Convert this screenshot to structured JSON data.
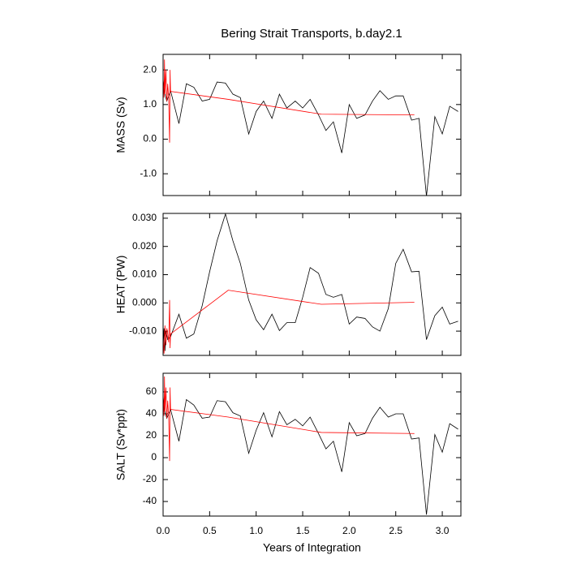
{
  "chart_data": [
    {
      "type": "line",
      "title": "Bering Strait Transports, b.day2.1",
      "ylabel": "MASS (Sv)",
      "xlim": [
        0,
        3.2
      ],
      "ylim": [
        -1.63,
        2.45
      ],
      "yticks": [
        {
          "value": 2,
          "label": "2.0"
        },
        {
          "value": 1,
          "label": "1.0"
        },
        {
          "value": 0,
          "label": "0.0"
        },
        {
          "value": -1,
          "label": "-1.0"
        }
      ],
      "series": [
        {
          "color": "#000000",
          "x": [
            0,
            0.02,
            0.04,
            0.08,
            0.17,
            0.25,
            0.33,
            0.42,
            0.5,
            0.58,
            0.67,
            0.75,
            0.83,
            0.92,
            1.0,
            1.08,
            1.17,
            1.25,
            1.33,
            1.42,
            1.5,
            1.58,
            1.67,
            1.75,
            1.83,
            1.92,
            2.0,
            2.08,
            2.17,
            2.25,
            2.33,
            2.42,
            2.5,
            2.58,
            2.67,
            2.75,
            2.83,
            2.92,
            3.0,
            3.08,
            3.17
          ],
          "values": [
            1.7,
            1.3,
            1.1,
            1.4,
            0.45,
            1.6,
            1.5,
            1.1,
            1.15,
            1.65,
            1.62,
            1.3,
            1.2,
            0.15,
            0.8,
            1.1,
            0.6,
            1.3,
            0.9,
            1.1,
            0.9,
            1.15,
            0.7,
            0.25,
            0.5,
            -0.4,
            1.0,
            0.6,
            0.7,
            1.1,
            1.4,
            1.15,
            1.25,
            1.25,
            0.55,
            0.6,
            -1.65,
            0.65,
            0.15,
            0.95,
            0.8
          ]
        },
        {
          "color": "#ff0000",
          "x": [
            0,
            0.01,
            0.015,
            0.02,
            0.03,
            0.04,
            0.05,
            0.06,
            0.07,
            0.075,
            0.08,
            0.7,
            1.7,
            2.7
          ],
          "values": [
            1.8,
            1.2,
            2.3,
            1.3,
            2.0,
            1.1,
            1.6,
            1.2,
            -0.1,
            2.0,
            1.38,
            1.15,
            0.72,
            0.7
          ]
        }
      ]
    },
    {
      "type": "line",
      "ylabel": "HEAT (PW)",
      "xlim": [
        0,
        3.2
      ],
      "ylim": [
        -0.0186,
        0.0317
      ],
      "yticks": [
        {
          "value": 0.03,
          "label": "0.030"
        },
        {
          "value": 0.02,
          "label": "0.020"
        },
        {
          "value": 0.01,
          "label": "0.010"
        },
        {
          "value": 0,
          "label": "0.000"
        },
        {
          "value": -0.01,
          "label": "-0.010"
        }
      ],
      "series": [
        {
          "color": "#000000",
          "x": [
            0,
            0.01,
            0.02,
            0.03,
            0.05,
            0.08,
            0.17,
            0.25,
            0.33,
            0.42,
            0.5,
            0.58,
            0.67,
            0.75,
            0.83,
            0.92,
            1.0,
            1.08,
            1.17,
            1.25,
            1.33,
            1.42,
            1.5,
            1.58,
            1.67,
            1.75,
            1.83,
            1.92,
            2.0,
            2.08,
            2.17,
            2.25,
            2.33,
            2.42,
            2.5,
            2.58,
            2.67,
            2.75,
            2.83,
            2.92,
            3.0,
            3.08,
            3.17
          ],
          "values": [
            -0.016,
            -0.009,
            -0.017,
            -0.01,
            -0.013,
            -0.012,
            -0.004,
            -0.0125,
            -0.011,
            -0.001,
            0.011,
            0.022,
            0.0315,
            0.022,
            0.014,
            0.001,
            -0.006,
            -0.0095,
            -0.004,
            -0.0098,
            -0.007,
            -0.007,
            0.002,
            0.0125,
            0.0105,
            0.003,
            0.002,
            0.003,
            -0.0075,
            -0.005,
            -0.0055,
            -0.0085,
            -0.01,
            -0.002,
            0.014,
            0.019,
            0.011,
            0.0112,
            -0.013,
            -0.0045,
            -0.0015,
            -0.0075,
            -0.0065
          ]
        },
        {
          "color": "#ff0000",
          "x": [
            0,
            0.01,
            0.02,
            0.03,
            0.04,
            0.05,
            0.06,
            0.07,
            0.075,
            0.08,
            0.7,
            1.7,
            2.7
          ],
          "values": [
            -0.012,
            -0.018,
            -0.008,
            -0.015,
            -0.009,
            -0.011,
            -0.014,
            0.001,
            -0.016,
            -0.011,
            0.0045,
            -0.0005,
            0.0002
          ]
        }
      ]
    },
    {
      "type": "line",
      "ylabel": "SALT (Sv*ppt)",
      "xlabel": "Years of Integration",
      "xlim": [
        0,
        3.2
      ],
      "ylim": [
        -53.3,
        77
      ],
      "xticks": [
        {
          "value": 0,
          "label": "0.0"
        },
        {
          "value": 0.5,
          "label": "0.5"
        },
        {
          "value": 1,
          "label": "1.0"
        },
        {
          "value": 1.5,
          "label": "1.5"
        },
        {
          "value": 2,
          "label": "2.0"
        },
        {
          "value": 2.5,
          "label": "2.5"
        },
        {
          "value": 3,
          "label": "3.0"
        }
      ],
      "yticks": [
        60,
        40,
        20,
        0,
        -20,
        -40
      ],
      "series": [
        {
          "color": "#000000",
          "x": [
            0,
            0.02,
            0.04,
            0.08,
            0.17,
            0.25,
            0.33,
            0.42,
            0.5,
            0.58,
            0.67,
            0.75,
            0.83,
            0.92,
            1.0,
            1.08,
            1.17,
            1.25,
            1.33,
            1.42,
            1.5,
            1.58,
            1.67,
            1.75,
            1.83,
            1.92,
            2.0,
            2.08,
            2.17,
            2.25,
            2.33,
            2.42,
            2.5,
            2.58,
            2.67,
            2.75,
            2.83,
            2.92,
            3.0,
            3.08,
            3.17
          ],
          "values": [
            55,
            42,
            36,
            44,
            15,
            53,
            48,
            36,
            37,
            52,
            51,
            41,
            38,
            4,
            25,
            41,
            19,
            42,
            30,
            35,
            29,
            37,
            22,
            8,
            15,
            -13,
            32,
            20,
            22,
            36,
            46,
            37,
            40,
            40,
            17,
            18,
            -52,
            21,
            5,
            31,
            26
          ]
        },
        {
          "color": "#ff0000",
          "x": [
            0,
            0.01,
            0.015,
            0.02,
            0.03,
            0.04,
            0.05,
            0.06,
            0.07,
            0.075,
            0.08,
            0.7,
            1.7,
            2.7
          ],
          "values": [
            58,
            38,
            74,
            42,
            64,
            36,
            52,
            38,
            -3,
            64,
            44,
            37,
            23,
            22
          ]
        }
      ]
    }
  ]
}
